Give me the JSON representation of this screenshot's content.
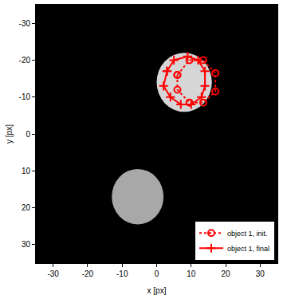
{
  "chart_data": {
    "type": "image_contour",
    "xlabel": "x [px]",
    "ylabel": "y [px]",
    "xlim": [
      -35,
      35
    ],
    "ylim": [
      -35,
      35
    ],
    "xticks": [
      -30,
      -20,
      -10,
      0,
      10,
      20,
      30
    ],
    "yticks": [
      -30,
      -20,
      -10,
      0,
      10,
      20,
      30
    ],
    "grid": false,
    "legend": "bottom right",
    "image_objects": [
      {
        "x": 8,
        "y": -14,
        "radius": 8,
        "color": "#d6d6d6"
      },
      {
        "x": -5.5,
        "y": 17,
        "radius": 7.5,
        "color": "#a8a8a8"
      }
    ],
    "series": [
      {
        "name": "object 1, init.",
        "color": "#ff0000",
        "marker": "circle-open",
        "line_style": "dot",
        "x": [
          6,
          9.5,
          13.5,
          17,
          17,
          13.5,
          9.5,
          6,
          6
        ],
        "y": [
          -16,
          -20,
          -20,
          -16.5,
          -11.5,
          -8.5,
          -8.5,
          -12,
          -16
        ]
      },
      {
        "name": "object 1, final",
        "color": "#ff0000",
        "marker": "cross-thin",
        "line_style": "solid",
        "x": [
          3,
          5,
          9,
          12,
          14,
          14,
          13,
          10,
          7,
          4,
          2,
          3
        ],
        "y": [
          -17,
          -20,
          -21,
          -20,
          -17,
          -13,
          -10,
          -8,
          -8,
          -10,
          -13,
          -17
        ]
      }
    ]
  }
}
